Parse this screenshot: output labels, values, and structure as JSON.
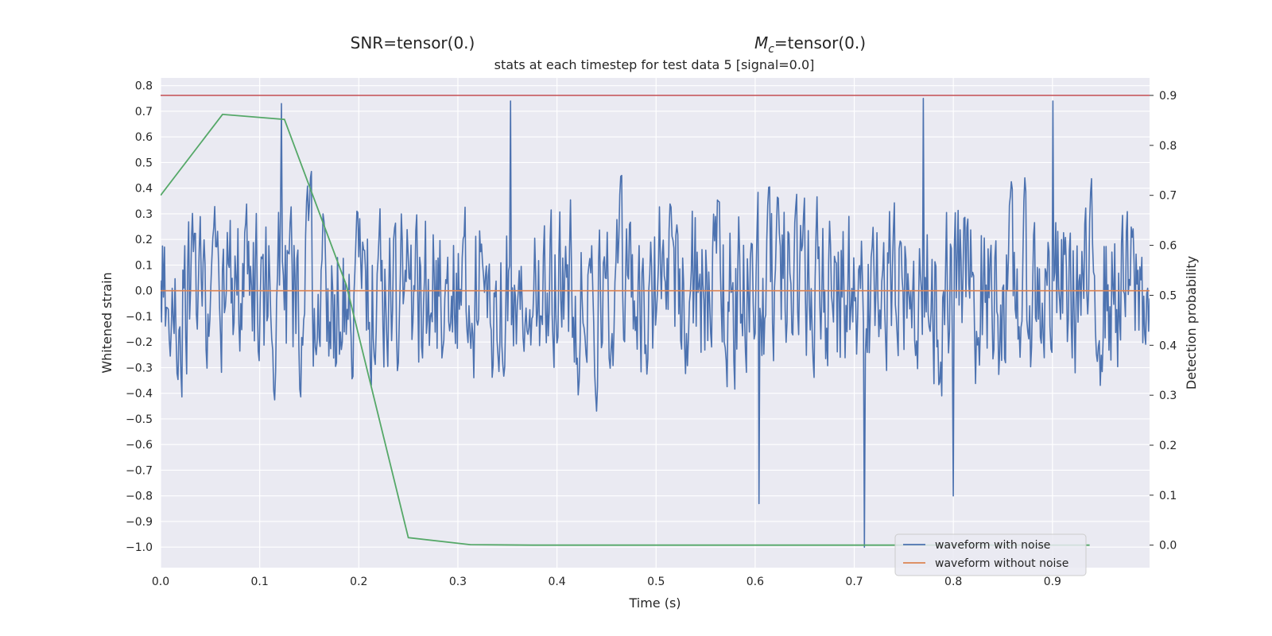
{
  "header": {
    "snr_label": "SNR=tensor(0.)",
    "mc_label_prefix": "M",
    "mc_label_sub": "c",
    "mc_label_suffix": "=tensor(0.)",
    "subtitle": "stats at each timestep for test data 5 [signal=0.0]"
  },
  "chart_data": {
    "type": "line",
    "title": "stats at each timestep for test data 5 [signal=0.0]",
    "xlabel": "Time (s)",
    "ylabel": "Whitened strain",
    "y2label": "Detection probability",
    "xlim": [
      0.0,
      0.998
    ],
    "ylim": [
      -1.08,
      0.83
    ],
    "y2lim": [
      -0.045,
      0.935
    ],
    "x_ticks": [
      "0.0",
      "0.1",
      "0.2",
      "0.3",
      "0.4",
      "0.5",
      "0.6",
      "0.7",
      "0.8",
      "0.9"
    ],
    "y_ticks": [
      "0.8",
      "0.7",
      "0.6",
      "0.5",
      "0.4",
      "0.3",
      "0.2",
      "0.1",
      "0.0",
      "−0.1",
      "−0.2",
      "−0.3",
      "−0.4",
      "−0.5",
      "−0.6",
      "−0.7",
      "−0.8",
      "−0.9",
      "−1.0"
    ],
    "y2_ticks": [
      "0.9",
      "0.8",
      "0.7",
      "0.6",
      "0.5",
      "0.4",
      "0.3",
      "0.2",
      "0.1",
      "0.0"
    ],
    "grid": true,
    "legend_position": "lower-right",
    "colors": {
      "background": "#eaeaf2",
      "grid": "#ffffff",
      "noise": "#4c72b0",
      "clean": "#dd8452",
      "probability": "#55a868",
      "threshold": "#c44e52"
    },
    "series": [
      {
        "name": "waveform with noise",
        "axis": "left",
        "generated": true,
        "n_samples": 1024,
        "x_range": [
          0.0,
          0.998
        ],
        "extremes": [
          {
            "x": 0.122,
            "y": 0.73
          },
          {
            "x": 0.353,
            "y": 0.74
          },
          {
            "x": 0.604,
            "y": -0.83
          },
          {
            "x": 0.71,
            "y": -1.0
          },
          {
            "x": 0.77,
            "y": 0.75
          },
          {
            "x": 0.8,
            "y": -0.8
          },
          {
            "x": 0.9,
            "y": 0.74
          }
        ]
      },
      {
        "name": "waveform without noise",
        "axis": "left",
        "x": [
          0.0,
          0.998
        ],
        "y": [
          0.0,
          0.0
        ]
      },
      {
        "name": "",
        "axis": "right",
        "x": [
          0.0,
          0.0625,
          0.125,
          0.1875,
          0.25,
          0.3125,
          0.375,
          0.4375,
          0.5,
          0.5625,
          0.625,
          0.6875,
          0.75,
          0.8125,
          0.875,
          0.9375
        ],
        "y": [
          0.7,
          0.862,
          0.852,
          0.52,
          0.015,
          0.001,
          0.0,
          0.0,
          0.0,
          0.0,
          0.0,
          0.0,
          0.0,
          0.0,
          0.0,
          0.0
        ]
      },
      {
        "name": "",
        "axis": "right",
        "x": [
          0.0,
          0.998
        ],
        "y": [
          0.9,
          0.9
        ]
      }
    ]
  }
}
